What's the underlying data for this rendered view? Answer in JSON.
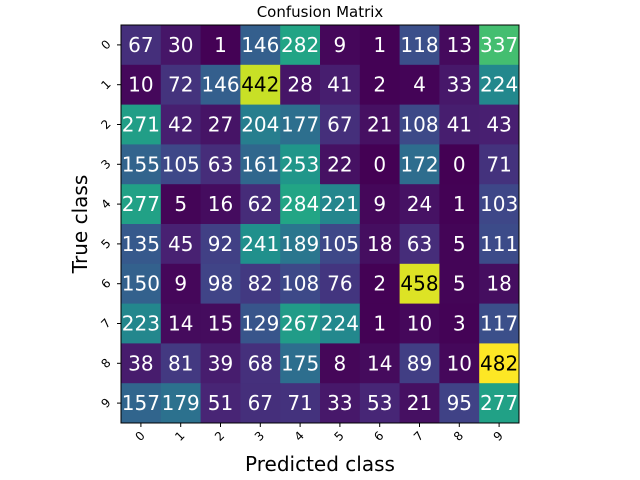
{
  "chart_data": {
    "type": "heatmap",
    "title": "Confusion Matrix",
    "xlabel": "Predicted class",
    "ylabel": "True class",
    "x_tick_labels": [
      "0",
      "1",
      "2",
      "3",
      "4",
      "5",
      "6",
      "7",
      "8",
      "9"
    ],
    "y_tick_labels": [
      "0",
      "1",
      "2",
      "3",
      "4",
      "5",
      "6",
      "7",
      "8",
      "9"
    ],
    "matrix": [
      [
        67,
        30,
        1,
        146,
        282,
        9,
        1,
        118,
        13,
        337
      ],
      [
        10,
        72,
        146,
        442,
        28,
        41,
        2,
        4,
        33,
        224
      ],
      [
        271,
        42,
        27,
        204,
        177,
        67,
        21,
        108,
        41,
        43
      ],
      [
        155,
        105,
        63,
        161,
        253,
        22,
        0,
        172,
        0,
        71
      ],
      [
        277,
        5,
        16,
        62,
        284,
        221,
        9,
        24,
        1,
        103
      ],
      [
        135,
        45,
        92,
        241,
        189,
        105,
        18,
        63,
        5,
        111
      ],
      [
        150,
        9,
        98,
        82,
        108,
        76,
        2,
        458,
        5,
        18
      ],
      [
        223,
        14,
        15,
        129,
        267,
        224,
        1,
        10,
        3,
        117
      ],
      [
        38,
        81,
        39,
        68,
        175,
        8,
        14,
        89,
        10,
        482
      ],
      [
        157,
        179,
        51,
        67,
        71,
        33,
        53,
        21,
        95,
        277
      ]
    ],
    "value_range": [
      0,
      482
    ],
    "colormap": "viridis",
    "grid": false
  }
}
